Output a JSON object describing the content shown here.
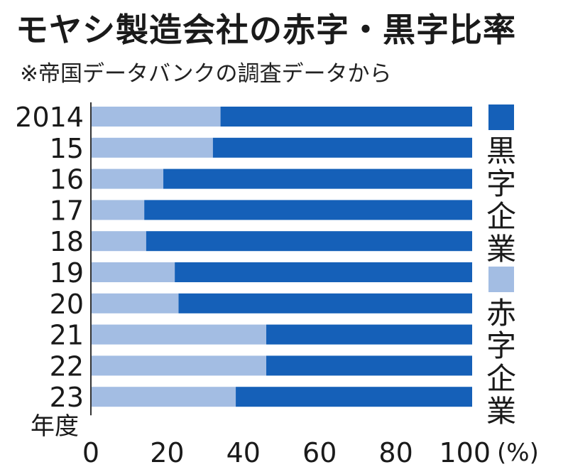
{
  "chart_data": {
    "type": "bar",
    "orientation": "horizontal",
    "stacked": true,
    "title": "モヤシ製造会社の赤字・黒字比率",
    "subtitle": "※帝国データバンクの調査データから",
    "ylabel": "年度",
    "xunit": "(%)",
    "xlim": [
      0,
      100
    ],
    "xticks": [
      "0",
      "20",
      "40",
      "60",
      "80",
      "100"
    ],
    "categories": [
      "2014",
      "15",
      "16",
      "17",
      "18",
      "19",
      "20",
      "21",
      "22",
      "23"
    ],
    "series": [
      {
        "name": "赤字企業",
        "color": "#a3bde3",
        "values": [
          34,
          32,
          19,
          14,
          14.5,
          22,
          23,
          46,
          46,
          38
        ]
      },
      {
        "name": "黒字企業",
        "color": "#1560b8",
        "values": [
          66,
          68,
          81,
          86,
          85.5,
          78,
          77,
          54,
          54,
          62
        ]
      }
    ],
    "legend": [
      {
        "label": "黒字企業",
        "color": "#1560b8"
      },
      {
        "label": "赤字企業",
        "color": "#a3bde3"
      }
    ]
  }
}
